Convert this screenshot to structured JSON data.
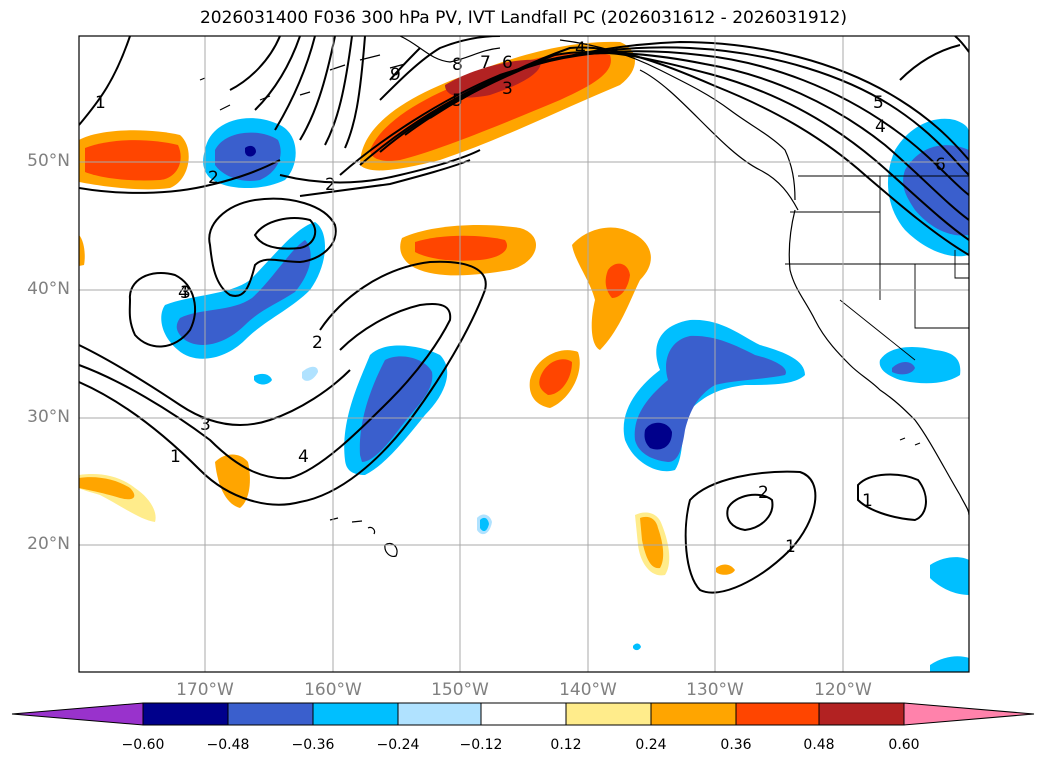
{
  "title": "2026031400 F036 300 hPa PV, IVT Landfall PC (2026031612 - 2026031912)",
  "lat_labels": [
    "50°N",
    "40°N",
    "30°N",
    "20°N"
  ],
  "lon_labels": [
    "170°W",
    "160°W",
    "150°W",
    "140°W",
    "130°W",
    "120°W"
  ],
  "colorbar": {
    "tick_labels": [
      "−0.60",
      "−0.48",
      "−0.36",
      "−0.24",
      "−0.12",
      "0.12",
      "0.24",
      "0.36",
      "0.48",
      "0.60"
    ],
    "colors": [
      "#9932cc",
      "#00008b",
      "#3a5fcd",
      "#00bfff",
      "#b0e2ff",
      "#ffffff",
      "#ffec8b",
      "#ffa500",
      "#ff4500",
      "#b22222",
      "#ff82ab"
    ]
  },
  "contour_labels": [
    "1",
    "2",
    "2",
    "2",
    "3",
    "3",
    "4",
    "4",
    "5",
    "6",
    "7",
    "8",
    "9",
    "5",
    "4",
    "6",
    "3",
    "4",
    "2",
    "1",
    "1",
    "1"
  ]
}
